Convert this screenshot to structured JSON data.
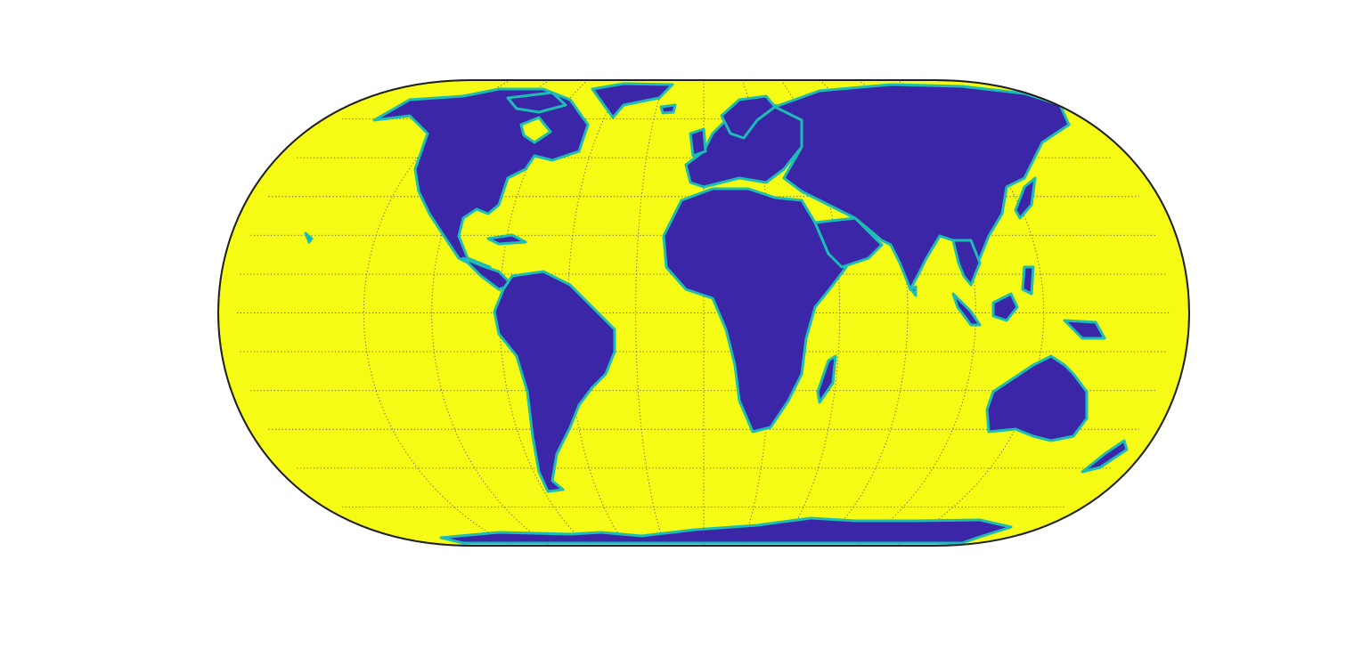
{
  "map": {
    "projection": "eckert-iv",
    "graticule": {
      "shown": true,
      "style": "dotted",
      "lat_step_deg": 15,
      "lon_step_deg": 30
    },
    "colors": {
      "ocean": "#f5fb14",
      "land": "#3a26a6",
      "coast": "#1bbdb5",
      "frame": "#222222",
      "graticule": "#555555",
      "background": "#ffffff"
    },
    "legend": null,
    "title": ""
  }
}
